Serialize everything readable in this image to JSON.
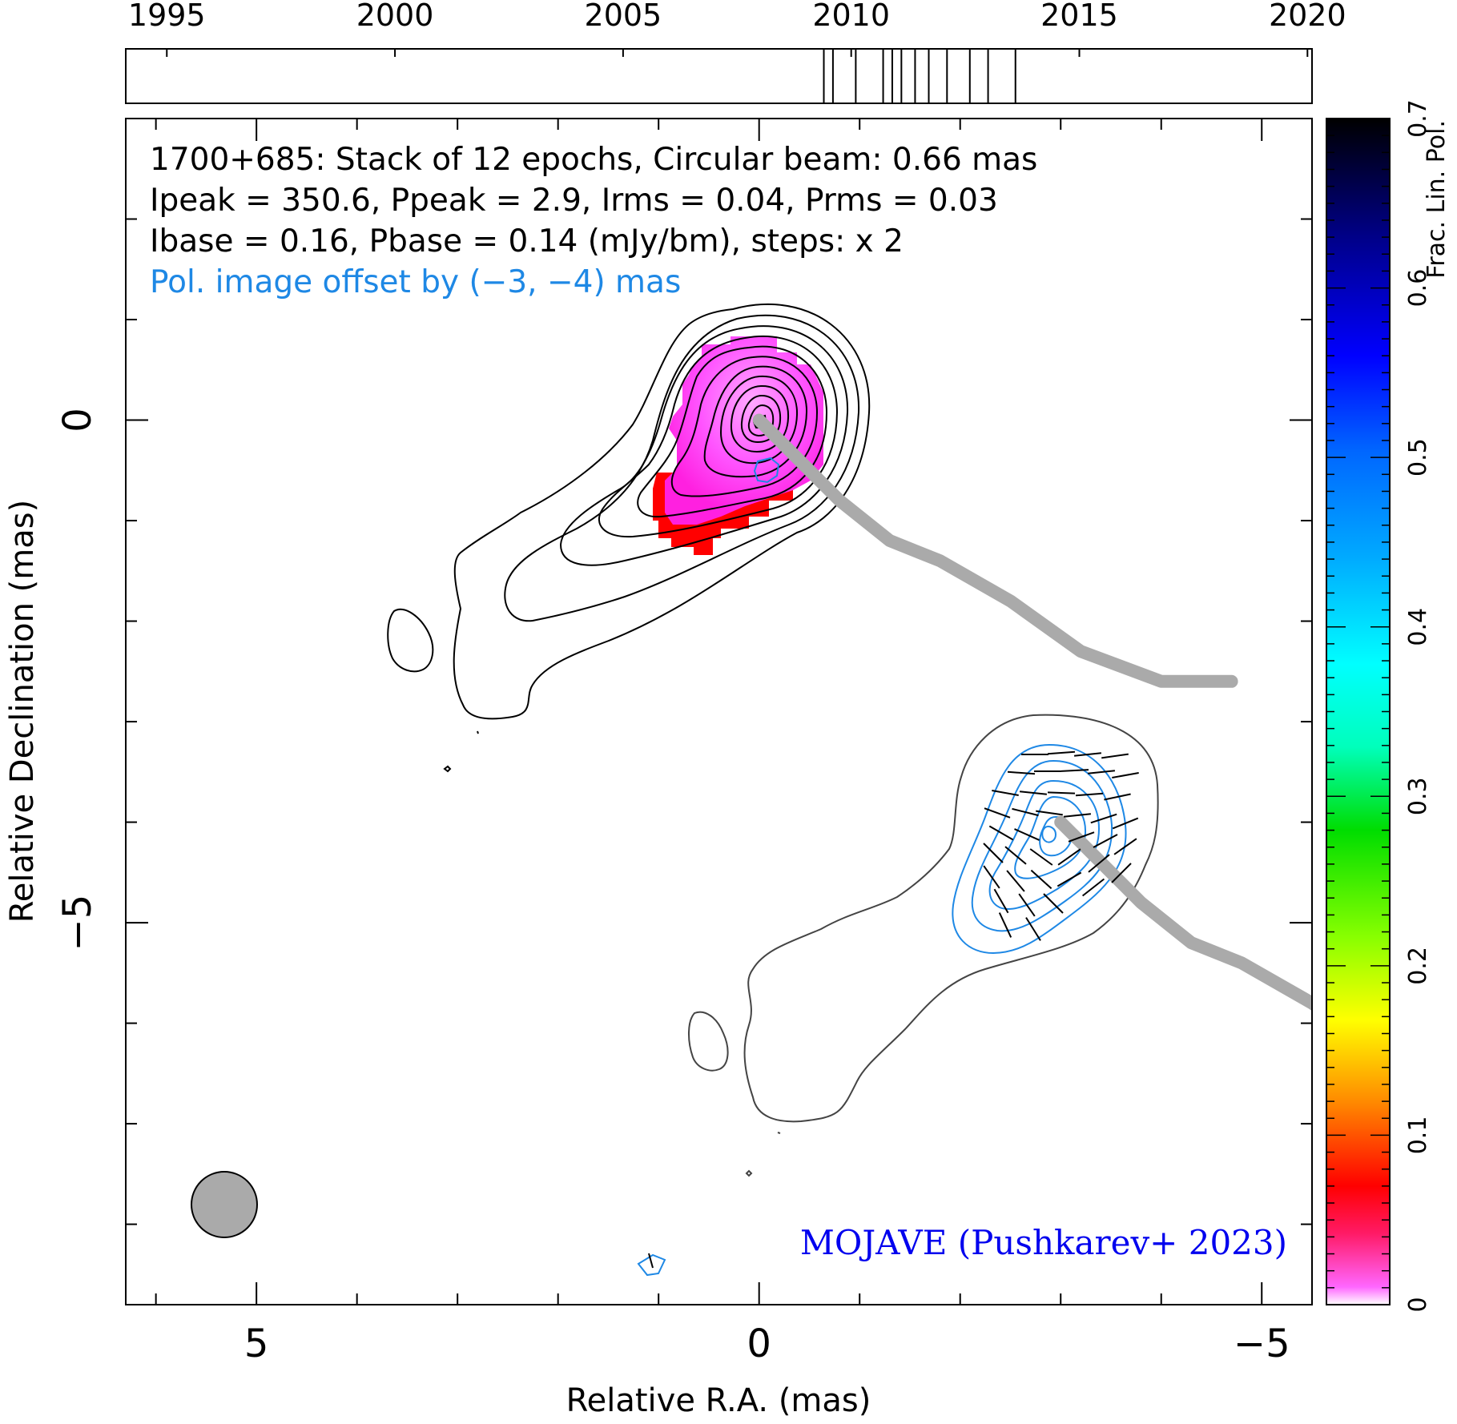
{
  "chart_data": {
    "type": "contour",
    "source": "1700+685",
    "annotations": {
      "line1": "1700+685: Stack of 12 epochs, Circular beam: 0.66 mas",
      "line2": "Ipeak = 350.6, Ppeak = 2.9, Irms = 0.04, Prms = 0.03",
      "line3": "Ibase = 0.16, Pbase = 0.14 (mJy/bm), steps: x 2",
      "line4": "Pol. image offset by (−3, −4) mas",
      "credit": "MOJAVE (Pushkarev+ 2023)"
    },
    "xlabel": "Relative R.A. (mas)",
    "ylabel": "Relative Declination (mas)",
    "xlim": [
      6.3,
      -5.5
    ],
    "ylim": [
      -8.8,
      3.0
    ],
    "x_ticks": [
      {
        "value": 5,
        "label": "5"
      },
      {
        "value": 0,
        "label": "0"
      },
      {
        "value": -5,
        "label": "−5"
      }
    ],
    "y_ticks": [
      {
        "value": 0,
        "label": "0"
      },
      {
        "value": -5,
        "label": "−5"
      }
    ],
    "timeline": {
      "xlim": [
        1994.1,
        2020.1
      ],
      "tick_labels": [
        "1995",
        "2000",
        "2005",
        "2010",
        "2015",
        "2020"
      ],
      "tick_values": [
        1995,
        2000,
        2005,
        2010,
        2015,
        2020
      ],
      "epochs": [
        2009.4,
        2009.6,
        2010.1,
        2010.7,
        2010.9,
        2011.1,
        2011.4,
        2011.7,
        2012.1,
        2012.6,
        2013.0,
        2013.6
      ]
    },
    "colorbar": {
      "label": "Frac. Lin. Pol.",
      "range": [
        0,
        0.7
      ],
      "tick_labels": [
        "0",
        "0.1",
        "0.2",
        "0.3",
        "0.4",
        "0.5",
        "0.6",
        "0.7"
      ],
      "tick_values": [
        0,
        0.1,
        0.2,
        0.3,
        0.4,
        0.5,
        0.6,
        0.7
      ]
    },
    "beam": {
      "diameter_mas": 0.66
    },
    "ridge_line": [
      [
        0,
        0
      ],
      [
        -0.3,
        -0.3
      ],
      [
        -0.8,
        -0.8
      ],
      [
        -1.3,
        -1.2
      ],
      [
        -1.8,
        -1.4
      ],
      [
        -2.5,
        -1.8
      ],
      [
        -3.2,
        -2.3
      ],
      [
        -4.0,
        -2.6
      ],
      [
        -4.7,
        -2.6
      ]
    ],
    "colors": {
      "total_intensity_contours": "#000000",
      "pol_contours": "#1e88e5",
      "credit": "#0000ee",
      "pol_text": "#1e88e5",
      "ridge": "#aaaaaa",
      "beam": "#aaaaaa"
    }
  }
}
